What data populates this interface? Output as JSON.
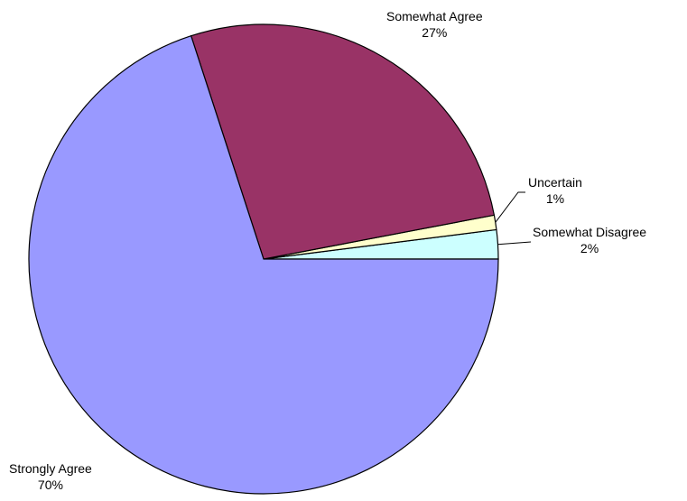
{
  "chart_data": {
    "type": "pie",
    "title": "",
    "slices": [
      {
        "label": "Somewhat Disagree",
        "value": 2,
        "value_label": "2%",
        "color": "#ccffff"
      },
      {
        "label": "Uncertain",
        "value": 1,
        "value_label": "1%",
        "color": "#ffffcc"
      },
      {
        "label": "Somewhat Agree",
        "value": 27,
        "value_label": "27%",
        "color": "#993366"
      },
      {
        "label": "Strongly Agree",
        "value": 70,
        "value_label": "70%",
        "color": "#9999ff"
      }
    ],
    "legend": "none"
  }
}
